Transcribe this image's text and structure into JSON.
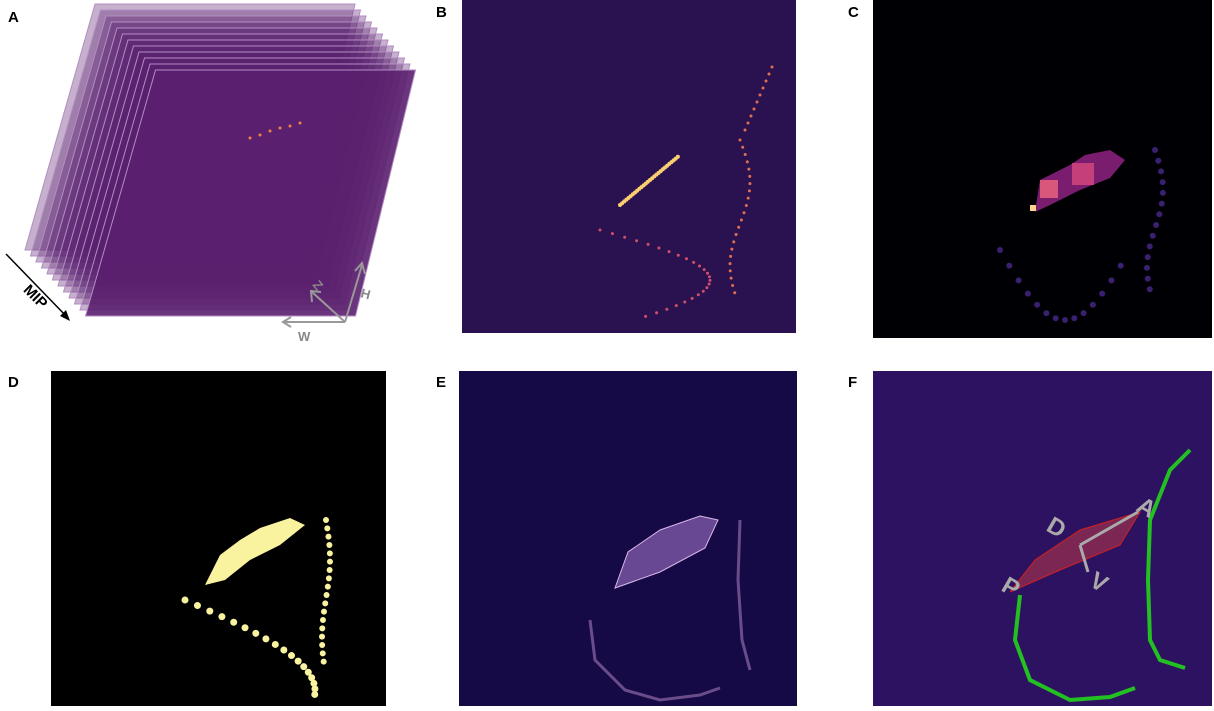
{
  "panels": [
    {
      "label": "A",
      "annotations": [
        "MIP",
        "Z",
        "H",
        "W"
      ]
    },
    {
      "label": "B"
    },
    {
      "label": "C"
    },
    {
      "label": "D"
    },
    {
      "label": "E"
    },
    {
      "label": "F",
      "annotations": [
        "D",
        "A",
        "P",
        "V"
      ]
    }
  ]
}
